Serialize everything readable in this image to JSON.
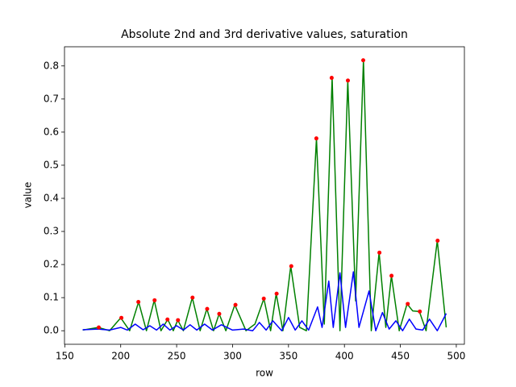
{
  "chart_data": {
    "type": "line",
    "title": "Absolute 2nd and 3rd derivative values, saturation",
    "x_label": "row",
    "y_label": "value",
    "xlim": [
      149.75,
      507.25
    ],
    "ylim": [
      -0.0409,
      0.8579
    ],
    "xticks": [
      150,
      200,
      250,
      300,
      350,
      400,
      450,
      500
    ],
    "yticks": [
      {
        "value": 0,
        "label": "0.0"
      },
      {
        "value": 0.1,
        "label": "0.1"
      },
      {
        "value": 0.2,
        "label": "0.2"
      },
      {
        "value": 0.3,
        "label": "0.3"
      },
      {
        "value": 0.4,
        "label": "0.4"
      },
      {
        "value": 0.5,
        "label": "0.5"
      },
      {
        "value": 0.6,
        "label": "0.6"
      },
      {
        "value": 0.7,
        "label": "0.7"
      },
      {
        "value": 0.8,
        "label": "0.8"
      }
    ],
    "series": [
      {
        "color": "#008000",
        "style": "line",
        "x": [
          166,
          180,
          190,
          200,
          208,
          216,
          223,
          230,
          236,
          242,
          247,
          251,
          256,
          264,
          271,
          277,
          283,
          288,
          294,
          302,
          312,
          320,
          328,
          334,
          339,
          345,
          352,
          360,
          366,
          375,
          382,
          389,
          396,
          403,
          410,
          417,
          424,
          431,
          437,
          442,
          449,
          456,
          461,
          467,
          473,
          483,
          491
        ],
        "values": [
          0.002,
          0.01,
          0.0,
          0.039,
          0.0,
          0.087,
          0.0,
          0.092,
          0.0,
          0.034,
          0.0,
          0.032,
          0.0,
          0.1,
          0.0,
          0.066,
          0.0,
          0.051,
          0.0,
          0.078,
          0.0,
          0.02,
          0.097,
          0.0,
          0.112,
          0.0,
          0.195,
          0.01,
          0.0,
          0.581,
          0.02,
          0.764,
          0.0,
          0.756,
          0.09,
          0.817,
          0.0,
          0.236,
          0.01,
          0.166,
          0.0,
          0.081,
          0.06,
          0.058,
          0.0,
          0.272,
          0.01
        ]
      },
      {
        "color": "#0000ff",
        "style": "line",
        "x": [
          166,
          180,
          190,
          200,
          206,
          213,
          220,
          226,
          232,
          238,
          244,
          250,
          256,
          262,
          268,
          275,
          282,
          290,
          300,
          310,
          318,
          324,
          330,
          336,
          344,
          350,
          356,
          362,
          368,
          376,
          380,
          386,
          390,
          396,
          401,
          408,
          413,
          422,
          428,
          434,
          440,
          446,
          452,
          458,
          464,
          470,
          476,
          483,
          491
        ],
        "values": [
          0.003,
          0.005,
          0.002,
          0.01,
          0.002,
          0.02,
          0.003,
          0.015,
          0.002,
          0.02,
          0.002,
          0.015,
          0.002,
          0.018,
          0.002,
          0.02,
          0.002,
          0.018,
          0.002,
          0.005,
          0.0,
          0.025,
          0.002,
          0.03,
          0.0,
          0.04,
          0.002,
          0.03,
          0.002,
          0.072,
          0.01,
          0.15,
          0.01,
          0.175,
          0.01,
          0.178,
          0.01,
          0.12,
          0.0,
          0.055,
          0.005,
          0.03,
          0.0,
          0.035,
          0.005,
          0.002,
          0.035,
          0.0,
          0.052
        ]
      },
      {
        "color": "#ff0000",
        "style": "points",
        "x": [
          180.4,
          200.6,
          215.8,
          230.3,
          241.8,
          251.2,
          264.2,
          277.3,
          288.1,
          302.6,
          327.9,
          339.4,
          352.5,
          374.9,
          388.6,
          403.1,
          416.8,
          431.3,
          442.1,
          456.6,
          467.4,
          483.3
        ],
        "values": [
          0.01,
          0.039,
          0.087,
          0.092,
          0.034,
          0.032,
          0.1,
          0.066,
          0.051,
          0.078,
          0.097,
          0.112,
          0.195,
          0.581,
          0.764,
          0.756,
          0.817,
          0.236,
          0.166,
          0.081,
          0.058,
          0.272
        ]
      }
    ]
  }
}
